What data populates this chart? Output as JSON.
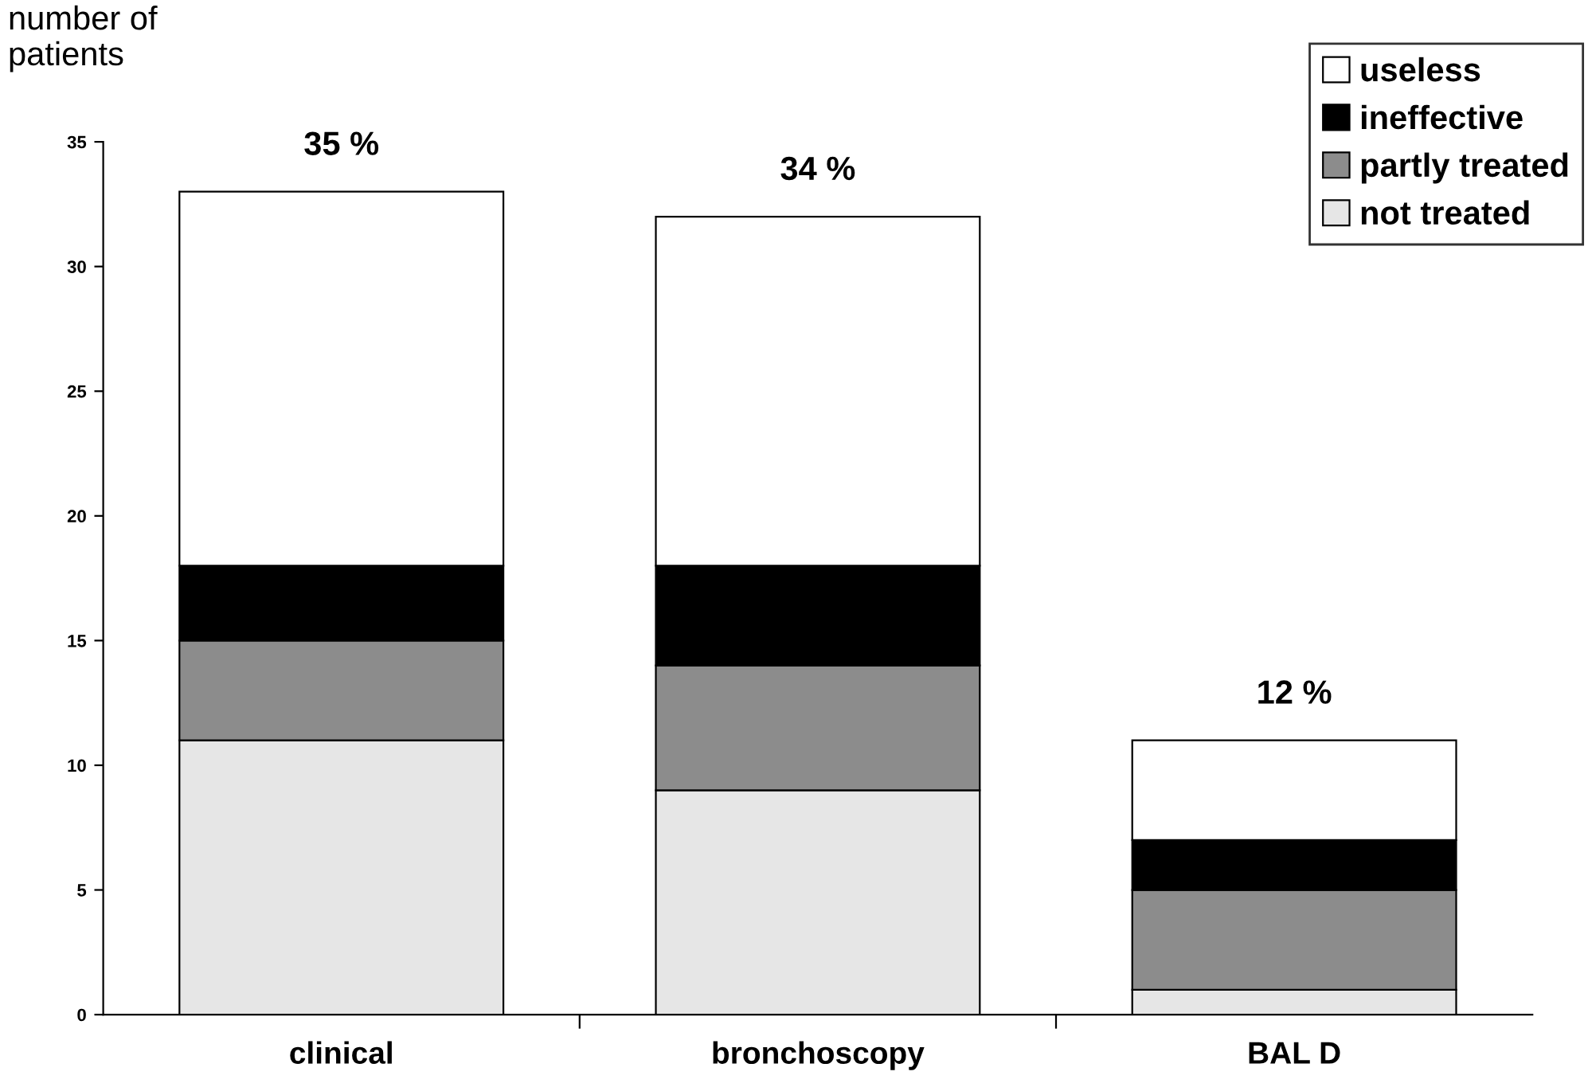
{
  "chart_data": {
    "type": "bar",
    "stacked": true,
    "ylabel": "number of\npatients",
    "categories": [
      "clinical",
      "bronchoscopy",
      "BAL D"
    ],
    "series": [
      {
        "name": "not treated",
        "color": "#e6e6e6",
        "values": [
          11,
          9,
          1
        ]
      },
      {
        "name": "partly treated",
        "color": "#8c8c8c",
        "values": [
          4,
          5,
          4
        ]
      },
      {
        "name": "ineffective",
        "color": "#000000",
        "values": [
          3,
          4,
          2
        ]
      },
      {
        "name": "useless",
        "color": "#ffffff",
        "values": [
          15,
          14,
          4
        ]
      }
    ],
    "totals": [
      "35 %",
      "34 %",
      "12 %"
    ],
    "ylim": [
      0,
      35
    ],
    "yticks": [
      0,
      5,
      10,
      15,
      20,
      25,
      30,
      35
    ],
    "grid": false,
    "legend": "top right"
  }
}
